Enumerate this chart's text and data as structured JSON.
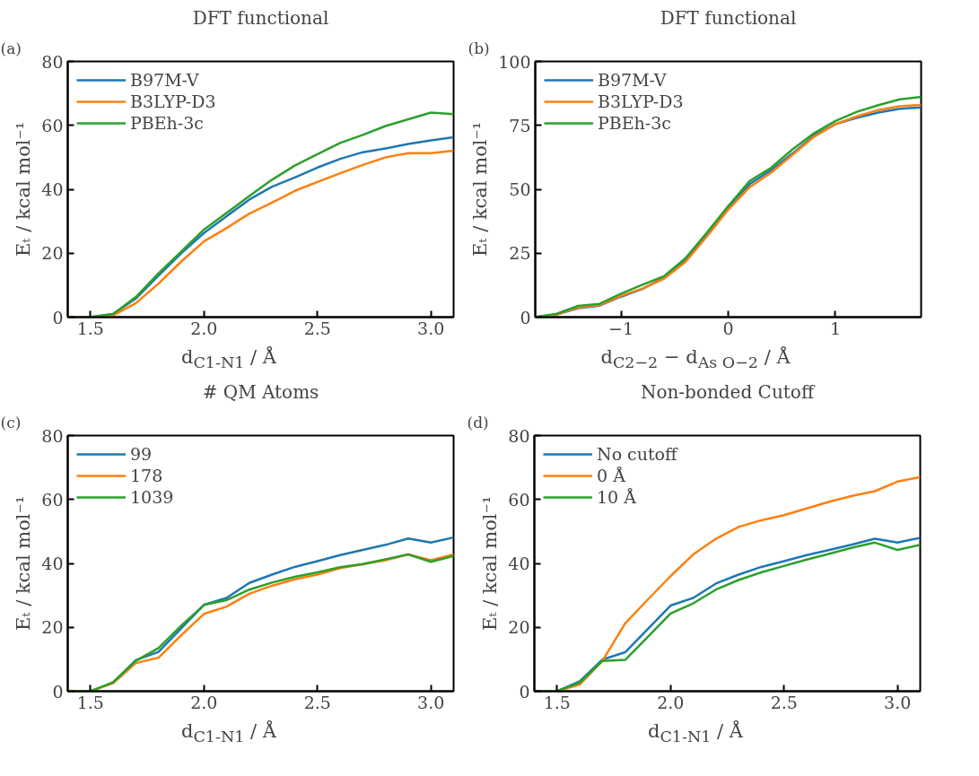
{
  "chart_data": [
    {
      "type": "line",
      "title": "DFT functional",
      "xlabel": "d$_{C1-N1}$ / Å",
      "ylabel": "Eₜ / kcal mol⁻¹",
      "annotations": [
        "(a)"
      ],
      "x": [
        1.4,
        1.5,
        1.6,
        1.7,
        1.8,
        1.9,
        2.0,
        2.1,
        2.2,
        2.3,
        2.4,
        2.5,
        2.6,
        2.7,
        2.8,
        2.9,
        3.0,
        3.1
      ],
      "series": [
        {
          "name": "B97M-V",
          "color": "#1f77b4",
          "values": [
            0,
            0,
            1,
            5.8,
            13,
            20,
            26.3,
            31.6,
            36.8,
            40.8,
            43.7,
            46.8,
            49.5,
            51.6,
            52.8,
            54.2,
            55.3,
            56.3
          ]
        },
        {
          "name": "B3LYP-D3",
          "color": "#ff7f0e",
          "values": [
            0,
            0,
            0.5,
            4.4,
            10.5,
            17.4,
            23.7,
            27.9,
            32.4,
            35.8,
            39.5,
            42.3,
            45,
            47.6,
            50,
            51.3,
            51.3,
            52.1
          ]
        },
        {
          "name": "PBEh-3c",
          "color": "#2ca02c",
          "values": [
            0,
            0,
            1,
            6.3,
            13.7,
            20.5,
            27.4,
            32.6,
            37.9,
            43,
            47.4,
            51,
            54.5,
            57,
            59.8,
            61.9,
            64,
            63.5
          ]
        }
      ],
      "xlim": [
        1.4,
        3.1
      ],
      "ylim": [
        0,
        80
      ],
      "xticks": [
        1.5,
        {
          "value": 2.0,
          "label": "2.0"
        },
        2.5,
        {
          "value": 3.0,
          "label": "3.0"
        }
      ],
      "yticks": [
        0,
        20,
        40,
        60,
        80
      ],
      "grid": false,
      "legend": "top left",
      "marker": "none",
      "line_style": "solid"
    },
    {
      "type": "line",
      "title": "DFT functional",
      "xlabel": "d$_{C2−2}$ − d$_{As O−2}$ / Å",
      "ylabel": "Eₜ / kcal mol⁻¹",
      "annotations": [
        "(b)"
      ],
      "x": [
        -1.8,
        -1.6,
        -1.4,
        -1.2,
        -1.0,
        -0.8,
        -0.6,
        -0.4,
        -0.2,
        0,
        0.2,
        0.4,
        0.6,
        0.8,
        1.0,
        1.2,
        1.4,
        1.6,
        1.8
      ],
      "series": [
        {
          "name": "B97M-V",
          "color": "#1f77b4",
          "values": [
            0,
            1,
            3.5,
            4.5,
            8,
            11,
            15.5,
            22,
            32,
            43,
            52,
            57.5,
            64,
            71,
            75.5,
            78,
            80,
            81.5,
            82
          ]
        },
        {
          "name": "B3LYP-D3",
          "color": "#ff7f0e",
          "values": [
            0,
            1,
            3.8,
            4.7,
            8.3,
            11.2,
            15,
            21.5,
            31.5,
            42,
            50.8,
            56.5,
            63.5,
            70.5,
            75.5,
            78.5,
            81,
            82.5,
            83
          ]
        },
        {
          "name": "PBEh-3c",
          "color": "#2ca02c",
          "values": [
            0,
            1.3,
            4.4,
            5.2,
            9.2,
            12.7,
            16,
            23,
            33,
            43.4,
            53.2,
            58.4,
            65.6,
            71.9,
            76.7,
            80.3,
            82.9,
            85.2,
            86.1
          ]
        }
      ],
      "xlim": [
        -1.8,
        1.8
      ],
      "ylim": [
        0,
        100
      ],
      "xticks": [
        {
          "value": -1,
          "label": "−1"
        },
        0,
        1
      ],
      "yticks": [
        0,
        25,
        50,
        75,
        100
      ],
      "grid": false,
      "legend": "top left",
      "marker": "none",
      "line_style": "solid"
    },
    {
      "type": "line",
      "title": "# QM Atoms",
      "xlabel": "d$_{C1-N1}$ / Å",
      "ylabel": "Eₜ / kcal mol⁻¹",
      "annotations": [
        "(c)"
      ],
      "x": [
        1.4,
        1.5,
        1.6,
        1.7,
        1.8,
        1.9,
        2.0,
        2.1,
        2.2,
        2.3,
        2.4,
        2.5,
        2.6,
        2.7,
        2.8,
        2.9,
        3.0,
        3.1
      ],
      "series": [
        {
          "name": "99",
          "color": "#1f77b4",
          "values": [
            null,
            null,
            2.8,
            9.7,
            12.3,
            19.7,
            27,
            29.2,
            33.9,
            36.5,
            38.9,
            40.7,
            42.6,
            44.2,
            45.8,
            47.8,
            46.5,
            48.1
          ]
        },
        {
          "name": "178",
          "color": "#ff7f0e",
          "values": [
            0,
            0,
            2.5,
            8.8,
            10.5,
            17.5,
            24.2,
            26.5,
            30.5,
            33,
            35,
            36.5,
            38.5,
            39.7,
            41,
            42.8,
            41,
            42.8
          ]
        },
        {
          "name": "1039",
          "color": "#2ca02c",
          "values": [
            0,
            0,
            2.8,
            9.5,
            13.5,
            20.5,
            27,
            28.5,
            31.8,
            34,
            35.8,
            37.2,
            38.8,
            39.8,
            41.3,
            42.8,
            40.5,
            42.3
          ]
        }
      ],
      "xlim": [
        1.4,
        3.1
      ],
      "ylim": [
        0,
        80
      ],
      "xticks": [
        1.5,
        {
          "value": 2.0,
          "label": "2.0"
        },
        2.5,
        {
          "value": 3.0,
          "label": "3.0"
        }
      ],
      "yticks": [
        0,
        20,
        40,
        60,
        80
      ],
      "grid": false,
      "legend": "top left",
      "marker": "none",
      "line_style": "solid"
    },
    {
      "type": "line",
      "title": "Non-bonded Cutoff",
      "xlabel": "d$_{C1-N1}$ / Å",
      "ylabel": "Eₜ / kcal mol⁻¹",
      "annotations": [
        "(d)"
      ],
      "x": [
        1.4,
        1.5,
        1.6,
        1.7,
        1.8,
        1.9,
        2.0,
        2.1,
        2.2,
        2.3,
        2.4,
        2.5,
        2.6,
        2.7,
        2.8,
        2.9,
        3.0,
        3.1
      ],
      "series": [
        {
          "name": "No cutoff",
          "color": "#1f77b4",
          "values": [
            0,
            0,
            3.1,
            9.9,
            12.2,
            19.5,
            26.8,
            29.2,
            33.7,
            36.5,
            38.9,
            40.7,
            42.6,
            44.2,
            45.9,
            47.7,
            46.5,
            48
          ]
        },
        {
          "name": "0 Å",
          "color": "#ff7f0e",
          "values": [
            0,
            0,
            2.1,
            9.5,
            21.2,
            28.7,
            36,
            42.8,
            47.7,
            51.4,
            53.5,
            55.1,
            57.2,
            59.3,
            61.1,
            62.6,
            65.6,
            67
          ]
        },
        {
          "name": "10 Å",
          "color": "#2ca02c",
          "values": [
            0,
            0,
            2.7,
            9.5,
            9.8,
            17,
            24.3,
            27.5,
            31.8,
            34.8,
            37.2,
            39.2,
            41.2,
            43,
            44.9,
            46.5,
            44.2,
            45.8
          ]
        }
      ],
      "xlim": [
        1.4,
        3.1
      ],
      "ylim": [
        0,
        80
      ],
      "xticks": [
        1.5,
        {
          "value": 2.0,
          "label": "2.0"
        },
        2.5,
        {
          "value": 3.0,
          "label": "3.0"
        }
      ],
      "yticks": [
        0,
        20,
        40,
        60,
        80
      ],
      "grid": false,
      "legend": "top left",
      "marker": "none",
      "line_style": "solid"
    }
  ]
}
